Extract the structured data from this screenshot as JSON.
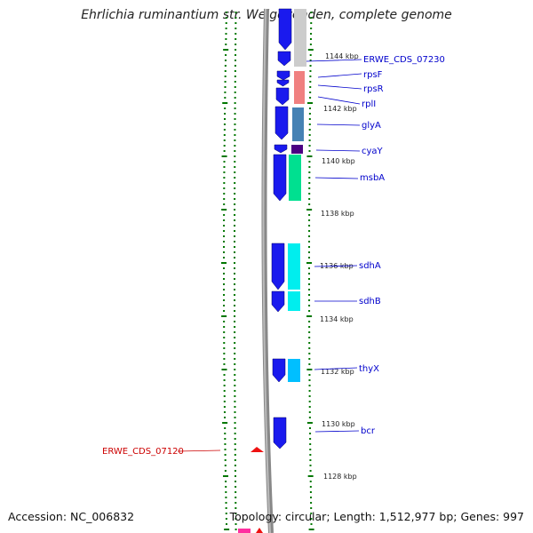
{
  "title": "Ehrlichia ruminantium str. Welgevonden, complete genome",
  "footer": {
    "accession": "Accession: NC_006832",
    "summary": "Topology: circular; Length: 1,512,977 bp; Genes: 997"
  },
  "kbp_ticks": [
    {
      "label": "1144 kbp"
    },
    {
      "label": "1142 kbp"
    },
    {
      "label": "1140 kbp"
    },
    {
      "label": "1138 kbp"
    },
    {
      "label": "1136 kbp"
    },
    {
      "label": "1134 kbp"
    },
    {
      "label": "1132 kbp"
    },
    {
      "label": "1130 kbp"
    },
    {
      "label": "1128 kbp"
    }
  ],
  "genes": [
    {
      "label": "ERWE_CDS_07230",
      "color": "#0000cc"
    },
    {
      "label": "rpsF",
      "color": "#0000cc"
    },
    {
      "label": "rpsR",
      "color": "#0000cc"
    },
    {
      "label": "rplI",
      "color": "#0000cc"
    },
    {
      "label": "glyA",
      "color": "#0000cc"
    },
    {
      "label": "cyaY",
      "color": "#0000cc"
    },
    {
      "label": "msbA",
      "color": "#0000cc"
    },
    {
      "label": "sdhA",
      "color": "#0000cc"
    },
    {
      "label": "sdhB",
      "color": "#0000cc"
    },
    {
      "label": "thyX",
      "color": "#0000cc"
    },
    {
      "label": "bcr",
      "color": "#0000cc"
    },
    {
      "label": "ERWE_CDS_07120",
      "color": "#cc0000"
    }
  ]
}
